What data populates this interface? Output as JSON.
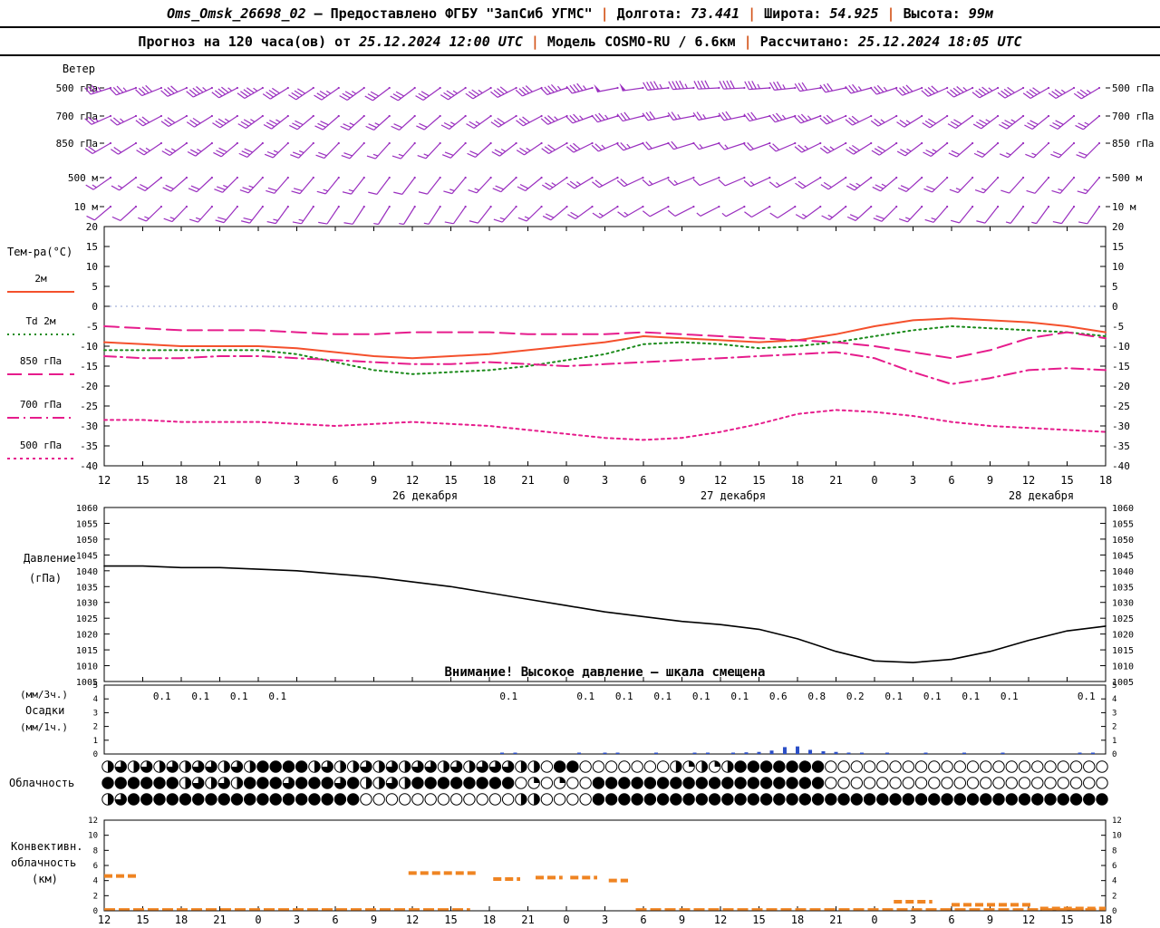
{
  "header": {
    "station": "Oms_Omsk_26698_02",
    "dash": "—",
    "provided": "Предоставлено ФГБУ \"ЗапСиб УГМС\"",
    "sep": "|",
    "lon_label": "Долгота:",
    "lon_value": "73.441",
    "lat_label": "Широта:",
    "lat_value": "54.925",
    "alt_label": "Высота:",
    "alt_value": "99м",
    "forecast_label": "Прогноз на 120 часа(ов) от",
    "forecast_run": "25.12.2024 12:00 UTC",
    "model_label": "Модель",
    "model_value": "COSMO-RU / 6.6км",
    "calc_label": "Рассчитано:",
    "calc_value": "25.12.2024 18:05 UTC",
    "separator_color": "#d4561c"
  },
  "chart_data": {
    "type": "meteogram",
    "x": {
      "hours": [
        "12",
        "15",
        "18",
        "21",
        "0",
        "3",
        "6",
        "9",
        "12",
        "15",
        "18",
        "21",
        "0",
        "3",
        "6",
        "9",
        "12",
        "15",
        "18",
        "21",
        "0",
        "3",
        "6",
        "9",
        "12",
        "15",
        "18"
      ],
      "dates": [
        {
          "label": "26 декабря",
          "tick": 8
        },
        {
          "label": "27 декабря",
          "tick": 16
        },
        {
          "label": "28 декабря",
          "tick": 24
        }
      ]
    },
    "wind": {
      "panel_label": "Ветер",
      "color": "#9a2fbf",
      "levels": [
        {
          "label": "500 гПа",
          "dirs": [
            252,
            250,
            248,
            246,
            244,
            242,
            240,
            238,
            236,
            235,
            234,
            233,
            233,
            234,
            236,
            239,
            243,
            247,
            251,
            255,
            259,
            262,
            264,
            266,
            267,
            267,
            266,
            264,
            261,
            258,
            255,
            252,
            249,
            246,
            244,
            242,
            241,
            240,
            240,
            239
          ],
          "spds": [
            35,
            35,
            40,
            40,
            45,
            45,
            45,
            40,
            40,
            35,
            35,
            30,
            30,
            30,
            35,
            35,
            40,
            40,
            45,
            45,
            50,
            50,
            45,
            45,
            40,
            40,
            35,
            35,
            30,
            30,
            35,
            35,
            40,
            40,
            45,
            45,
            40,
            40,
            35,
            35
          ]
        },
        {
          "label": "700 гПа",
          "dirs": [
            246,
            244,
            242,
            240,
            238,
            236,
            234,
            232,
            230,
            229,
            228,
            228,
            228,
            229,
            231,
            234,
            238,
            242,
            246,
            250,
            253,
            256,
            258,
            259,
            259,
            258,
            256,
            253,
            250,
            247,
            244,
            241,
            238,
            236,
            234,
            233,
            232,
            231,
            231,
            230
          ],
          "spds": [
            25,
            25,
            30,
            30,
            30,
            35,
            35,
            35,
            30,
            30,
            25,
            25,
            20,
            20,
            25,
            25,
            30,
            30,
            35,
            35,
            35,
            30,
            30,
            25,
            25,
            30,
            30,
            35,
            35,
            30,
            30,
            25,
            25,
            30,
            30,
            35,
            35,
            30,
            30,
            25
          ]
        },
        {
          "label": "850 гПа",
          "dirs": [
            240,
            238,
            236,
            234,
            232,
            230,
            228,
            226,
            225,
            224,
            223,
            222,
            222,
            223,
            225,
            228,
            232,
            236,
            240,
            244,
            247,
            250,
            252,
            253,
            253,
            252,
            250,
            247,
            244,
            241,
            238,
            235,
            233,
            231,
            229,
            228,
            227,
            226,
            226,
            225
          ],
          "spds": [
            20,
            20,
            25,
            25,
            25,
            30,
            30,
            25,
            25,
            20,
            20,
            15,
            15,
            15,
            20,
            20,
            25,
            25,
            30,
            30,
            25,
            25,
            20,
            20,
            15,
            15,
            20,
            20,
            25,
            25,
            30,
            30,
            25,
            25,
            20,
            20,
            15,
            15,
            20,
            20
          ]
        },
        {
          "label": "500 м",
          "dirs": [
            235,
            233,
            231,
            229,
            227,
            225,
            223,
            221,
            220,
            219,
            218,
            217,
            217,
            218,
            220,
            223,
            227,
            231,
            235,
            239,
            242,
            245,
            247,
            248,
            248,
            247,
            245,
            242,
            239,
            236,
            233,
            230,
            228,
            226,
            224,
            223,
            222,
            221,
            221,
            220
          ],
          "spds": [
            15,
            15,
            20,
            20,
            20,
            25,
            25,
            20,
            20,
            15,
            15,
            10,
            10,
            10,
            15,
            15,
            20,
            20,
            25,
            25,
            20,
            20,
            15,
            15,
            10,
            10,
            15,
            15,
            20,
            20,
            25,
            25,
            20,
            20,
            15,
            15,
            10,
            10,
            15,
            15
          ]
        },
        {
          "label": "10 м",
          "dirs": [
            230,
            228,
            226,
            224,
            222,
            220,
            218,
            216,
            215,
            214,
            213,
            212,
            212,
            213,
            215,
            218,
            222,
            226,
            230,
            234,
            237,
            240,
            242,
            243,
            243,
            242,
            240,
            237,
            234,
            231,
            228,
            225,
            223,
            221,
            219,
            218,
            217,
            216,
            216,
            215
          ],
          "spds": [
            10,
            10,
            15,
            15,
            15,
            20,
            20,
            15,
            15,
            10,
            10,
            5,
            5,
            5,
            10,
            10,
            15,
            15,
            20,
            20,
            15,
            15,
            10,
            10,
            5,
            5,
            10,
            10,
            15,
            15,
            20,
            20,
            15,
            15,
            10,
            10,
            5,
            5,
            10,
            10
          ]
        }
      ]
    },
    "temperature": {
      "panel_label": "Тем-ра(°C)",
      "ylim": [
        -40,
        20
      ],
      "yticks": [
        20,
        15,
        10,
        5,
        0,
        -5,
        -10,
        -15,
        -20,
        -25,
        -30,
        -35,
        -40
      ],
      "zero_line_color": "#8f9fd0",
      "series": [
        {
          "name": "2м",
          "color": "#f4502c",
          "style": "solid",
          "values": [
            -9,
            -9.5,
            -10,
            -10,
            -10,
            -10.5,
            -11.5,
            -12.5,
            -13,
            -12.5,
            -12,
            -11,
            -10,
            -9,
            -7.5,
            -8,
            -8.5,
            -9,
            -8.5,
            -7,
            -5,
            -3.5,
            -3,
            -3.5,
            -4,
            -5,
            -6.5
          ]
        },
        {
          "name": "Td 2м",
          "color": "#1a8a1a",
          "style": "dotted",
          "values": [
            -11,
            -11,
            -11,
            -11,
            -11,
            -12,
            -14,
            -16,
            -17,
            -16.5,
            -16,
            -15,
            -13.5,
            -12,
            -9.5,
            -9,
            -9.5,
            -10.5,
            -10,
            -9,
            -7.5,
            -6,
            -5,
            -5.5,
            -6,
            -6.5,
            -7.5
          ]
        },
        {
          "name": "850 гПа",
          "color": "#e61c8c",
          "style": "dashed",
          "values": [
            -5,
            -5.5,
            -6,
            -6,
            -6,
            -6.5,
            -7,
            -7,
            -6.5,
            -6.5,
            -6.5,
            -7,
            -7,
            -7,
            -6.5,
            -7,
            -7.5,
            -8,
            -8.5,
            -9,
            -10,
            -11.5,
            -13,
            -11,
            -8,
            -6.5,
            -8
          ]
        },
        {
          "name": "700 гПа",
          "color": "#e61c8c",
          "style": "dashdot",
          "values": [
            -12.5,
            -13,
            -13,
            -12.5,
            -12.5,
            -13,
            -13.5,
            -14,
            -14.5,
            -14.5,
            -14,
            -14.5,
            -15,
            -14.5,
            -14,
            -13.5,
            -13,
            -12.5,
            -12,
            -11.5,
            -13,
            -16.5,
            -19.5,
            -18,
            -16,
            -15.5,
            -16
          ]
        },
        {
          "name": "500 гПа",
          "color": "#e61c8c",
          "style": "fdot",
          "values": [
            -28.5,
            -28.5,
            -29,
            -29,
            -29,
            -29.5,
            -30,
            -29.5,
            -29,
            -29.5,
            -30,
            -31,
            -32,
            -33,
            -33.5,
            -33,
            -31.5,
            -29.5,
            -27,
            -26,
            -26.5,
            -27.5,
            -29,
            -30,
            -30.5,
            -31,
            -31.5
          ]
        }
      ]
    },
    "pressure": {
      "label_line1": "Давление",
      "label_line2": "(гПа)",
      "ylim": [
        1005,
        1060
      ],
      "yticks": [
        1060,
        1055,
        1050,
        1045,
        1040,
        1035,
        1030,
        1025,
        1020,
        1015,
        1010,
        1005
      ],
      "warning": "Внимание! Высокое давление — шкала смещена",
      "color": "#000000",
      "values": [
        1041.5,
        1041.5,
        1041,
        1041,
        1040.5,
        1040,
        1039,
        1038,
        1036.5,
        1035,
        1033,
        1031,
        1029,
        1027,
        1025.5,
        1024,
        1023,
        1021.5,
        1018.5,
        1014.5,
        1011.5,
        1011,
        1012,
        1014.5,
        1018,
        1021,
        1022.5
      ]
    },
    "precipitation": {
      "label_top": "(мм/3ч.)",
      "label_mid": "Осадки",
      "label_bottom": "(мм/1ч.)",
      "ylim": [
        0,
        5
      ],
      "yticks": [
        5,
        4,
        3,
        2,
        1,
        0
      ],
      "bar_color": "#2b4fc7",
      "labels_3h": [
        {
          "t": 1.5,
          "v": "0.1"
        },
        {
          "t": 2.5,
          "v": "0.1"
        },
        {
          "t": 3.5,
          "v": "0.1"
        },
        {
          "t": 4.5,
          "v": "0.1"
        },
        {
          "t": 10.5,
          "v": "0.1"
        },
        {
          "t": 12.5,
          "v": "0.1"
        },
        {
          "t": 13.5,
          "v": "0.1"
        },
        {
          "t": 14.5,
          "v": "0.1"
        },
        {
          "t": 15.5,
          "v": "0.1"
        },
        {
          "t": 16.5,
          "v": "0.1"
        },
        {
          "t": 17.5,
          "v": "0.6"
        },
        {
          "t": 18.5,
          "v": "0.8"
        },
        {
          "t": 19.5,
          "v": "0.2"
        },
        {
          "t": 20.5,
          "v": "0.1"
        },
        {
          "t": 21.5,
          "v": "0.1"
        },
        {
          "t": 22.5,
          "v": "0.1"
        },
        {
          "t": 23.5,
          "v": "0.1"
        },
        {
          "t": 25.5,
          "v": "0.1"
        }
      ],
      "bars_1h": [
        {
          "t": 10.33,
          "h": 0.1
        },
        {
          "t": 10.67,
          "h": 0.08
        },
        {
          "t": 12.33,
          "h": 0.08
        },
        {
          "t": 13.0,
          "h": 0.06
        },
        {
          "t": 13.33,
          "h": 0.08
        },
        {
          "t": 14.33,
          "h": 0.06
        },
        {
          "t": 15.33,
          "h": 0.08
        },
        {
          "t": 15.67,
          "h": 0.1
        },
        {
          "t": 16.33,
          "h": 0.1
        },
        {
          "t": 16.67,
          "h": 0.12
        },
        {
          "t": 17.0,
          "h": 0.15
        },
        {
          "t": 17.33,
          "h": 0.25
        },
        {
          "t": 17.67,
          "h": 0.5
        },
        {
          "t": 18.0,
          "h": 0.55
        },
        {
          "t": 18.33,
          "h": 0.3
        },
        {
          "t": 18.67,
          "h": 0.2
        },
        {
          "t": 19.0,
          "h": 0.15
        },
        {
          "t": 19.33,
          "h": 0.1
        },
        {
          "t": 19.67,
          "h": 0.08
        },
        {
          "t": 20.33,
          "h": 0.06
        },
        {
          "t": 21.33,
          "h": 0.06
        },
        {
          "t": 22.33,
          "h": 0.06
        },
        {
          "t": 23.33,
          "h": 0.06
        },
        {
          "t": 25.33,
          "h": 0.1
        },
        {
          "t": 25.67,
          "h": 0.1
        }
      ]
    },
    "cloudiness": {
      "panel_label": "Облачность",
      "symbol_color": "#000000",
      "rows": [
        "232323233232444423223232332323332204400000002121244444440000000000000000000000",
        "444444232324443444342232444444440101004444444444444444440000000000000000000000",
        "234444444444444444440000000000002200004444444444444444444444444444444444444444"
      ]
    },
    "convective": {
      "label_lines": [
        "Конвективн.",
        "облачность",
        "(км)"
      ],
      "ylim": [
        0,
        12
      ],
      "yticks": [
        12,
        10,
        8,
        6,
        4,
        2,
        0
      ],
      "color": "#ef8422",
      "segments": [
        {
          "t1": 0.0,
          "t2": 0.9,
          "km": 4.6
        },
        {
          "t1": 7.9,
          "t2": 9.7,
          "km": 5.0
        },
        {
          "t1": 10.1,
          "t2": 10.8,
          "km": 4.2
        },
        {
          "t1": 11.2,
          "t2": 11.9,
          "km": 4.4
        },
        {
          "t1": 12.1,
          "t2": 12.8,
          "km": 4.4
        },
        {
          "t1": 13.1,
          "t2": 13.6,
          "km": 4.0
        },
        {
          "t1": 20.5,
          "t2": 21.5,
          "km": 1.2
        },
        {
          "t1": 22.0,
          "t2": 24.1,
          "km": 0.8
        },
        {
          "t1": 24.3,
          "t2": 26.0,
          "km": 0.3
        }
      ],
      "baseline": [
        {
          "t1": 0.0,
          "t2": 9.5,
          "km": 0.2
        },
        {
          "t1": 13.8,
          "t2": 26.0,
          "km": 0.2
        }
      ]
    }
  }
}
